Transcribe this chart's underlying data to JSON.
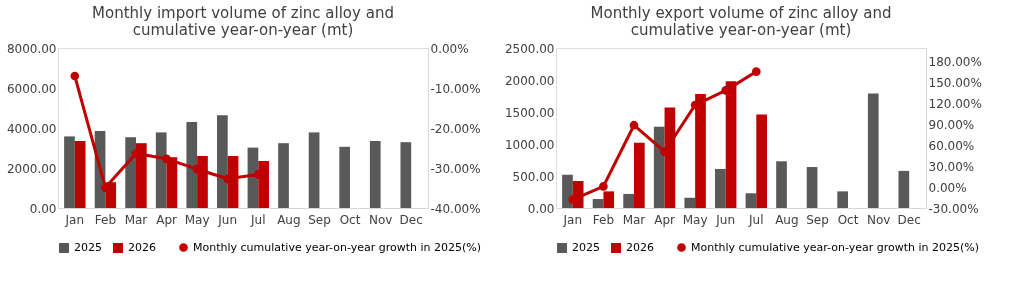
{
  "chart_data": [
    {
      "type": "bar",
      "title": "Monthly import volume of zinc alloy and cumulative year-on-year (mt)",
      "categories": [
        "Jan",
        "Feb",
        "Mar",
        "Apr",
        "May",
        "Jun",
        "Jul",
        "Aug",
        "Sep",
        "Oct",
        "Nov",
        "Dec"
      ],
      "series": [
        {
          "name": "2025",
          "color": "#595959",
          "values": [
            3580,
            3850,
            3540,
            3780,
            4300,
            4640,
            3020,
            3240,
            3780,
            3060,
            3350,
            3290
          ]
        },
        {
          "name": "2026",
          "color": "#c00000",
          "values": [
            3350,
            1290,
            3240,
            2540,
            2600,
            2600,
            2350,
            null,
            null,
            null,
            null,
            null
          ]
        },
        {
          "name": "Monthly cumulative year-on-year growth in 2025(%)",
          "type": "line",
          "axis": "y2",
          "marker": "circle",
          "color": "#c00000",
          "values": [
            -7.0,
            -34.9,
            -26.4,
            -27.7,
            -30.3,
            -32.7,
            -31.6,
            null,
            null,
            null,
            null,
            null
          ]
        }
      ],
      "ylim": [
        0,
        8000
      ],
      "yticks": [
        {
          "value": 0,
          "label": "0.00"
        },
        {
          "value": 2000,
          "label": "2000.00"
        },
        {
          "value": 4000,
          "label": "4000.00"
        },
        {
          "value": 6000,
          "label": "6000.00"
        },
        {
          "value": 8000,
          "label": "8000.00"
        }
      ],
      "y2lim": [
        -40,
        0
      ],
      "y2ticks": [
        {
          "value": -40,
          "label": "-40.00%"
        },
        {
          "value": -30,
          "label": "-30.00%"
        },
        {
          "value": -20,
          "label": "-20.00%"
        },
        {
          "value": -10,
          "label": "-10.00%"
        },
        {
          "value": 0,
          "label": "0.00%"
        }
      ],
      "grid": false,
      "legend": "bottom"
    },
    {
      "type": "bar",
      "title": "Monthly export volume of zinc alloy and cumulative year-on-year (mt)",
      "categories": [
        "Jan",
        "Feb",
        "Mar",
        "Apr",
        "May",
        "Jun",
        "Jul",
        "Aug",
        "Sep",
        "Oct",
        "Nov",
        "Dec"
      ],
      "series": [
        {
          "name": "2025",
          "color": "#595959",
          "values": [
            520,
            140,
            220,
            1270,
            160,
            610,
            230,
            730,
            640,
            260,
            1790,
            580
          ]
        },
        {
          "name": "2026",
          "color": "#c00000",
          "values": [
            420,
            260,
            1020,
            1570,
            1780,
            1980,
            1460,
            null,
            null,
            null,
            null,
            null
          ]
        },
        {
          "name": "Monthly cumulative year-on-year growth in 2025(%)",
          "type": "line",
          "axis": "y2",
          "marker": "circle",
          "color": "#c00000",
          "values": [
            -18,
            1,
            89,
            51,
            118,
            139,
            166,
            null,
            null,
            null,
            null,
            null
          ]
        }
      ],
      "ylim": [
        0,
        2500
      ],
      "yticks": [
        {
          "value": 0,
          "label": "0.00"
        },
        {
          "value": 500,
          "label": "500.00"
        },
        {
          "value": 1000,
          "label": "1000.00"
        },
        {
          "value": 1500,
          "label": "1500.00"
        },
        {
          "value": 2000,
          "label": "2000.00"
        },
        {
          "value": 2500,
          "label": "2500.00"
        }
      ],
      "y2lim": [
        -30,
        200
      ],
      "y2ticks": [
        {
          "value": -30,
          "label": "-30.00%"
        },
        {
          "value": 0,
          "label": "0.00%"
        },
        {
          "value": 30,
          "label": "30.00%"
        },
        {
          "value": 60,
          "label": "60.00%"
        },
        {
          "value": 90,
          "label": "90.00%"
        },
        {
          "value": 120,
          "label": "120.00%"
        },
        {
          "value": 150,
          "label": "150.00%"
        },
        {
          "value": 180,
          "label": "180.00%"
        }
      ],
      "grid": false,
      "legend": "bottom"
    }
  ]
}
